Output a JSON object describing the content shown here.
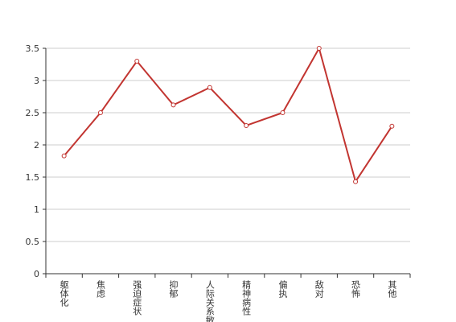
{
  "chart_data": {
    "type": "line",
    "categories": [
      "躯体化",
      "焦虑",
      "强迫症状",
      "抑郁",
      "人际关系敏感",
      "精神病性",
      "偏执",
      "敌对",
      "恐怖",
      "其他"
    ],
    "series": [
      {
        "color": "#c23531",
        "values": [
          1.83,
          2.5,
          3.3,
          2.62,
          2.89,
          2.3,
          2.5,
          3.5,
          1.43,
          2.29
        ]
      }
    ],
    "ylim": [
      0,
      3.5
    ],
    "yticks": [
      0,
      0.5,
      1,
      1.5,
      2,
      2.5,
      3,
      3.5
    ],
    "grid": true
  }
}
